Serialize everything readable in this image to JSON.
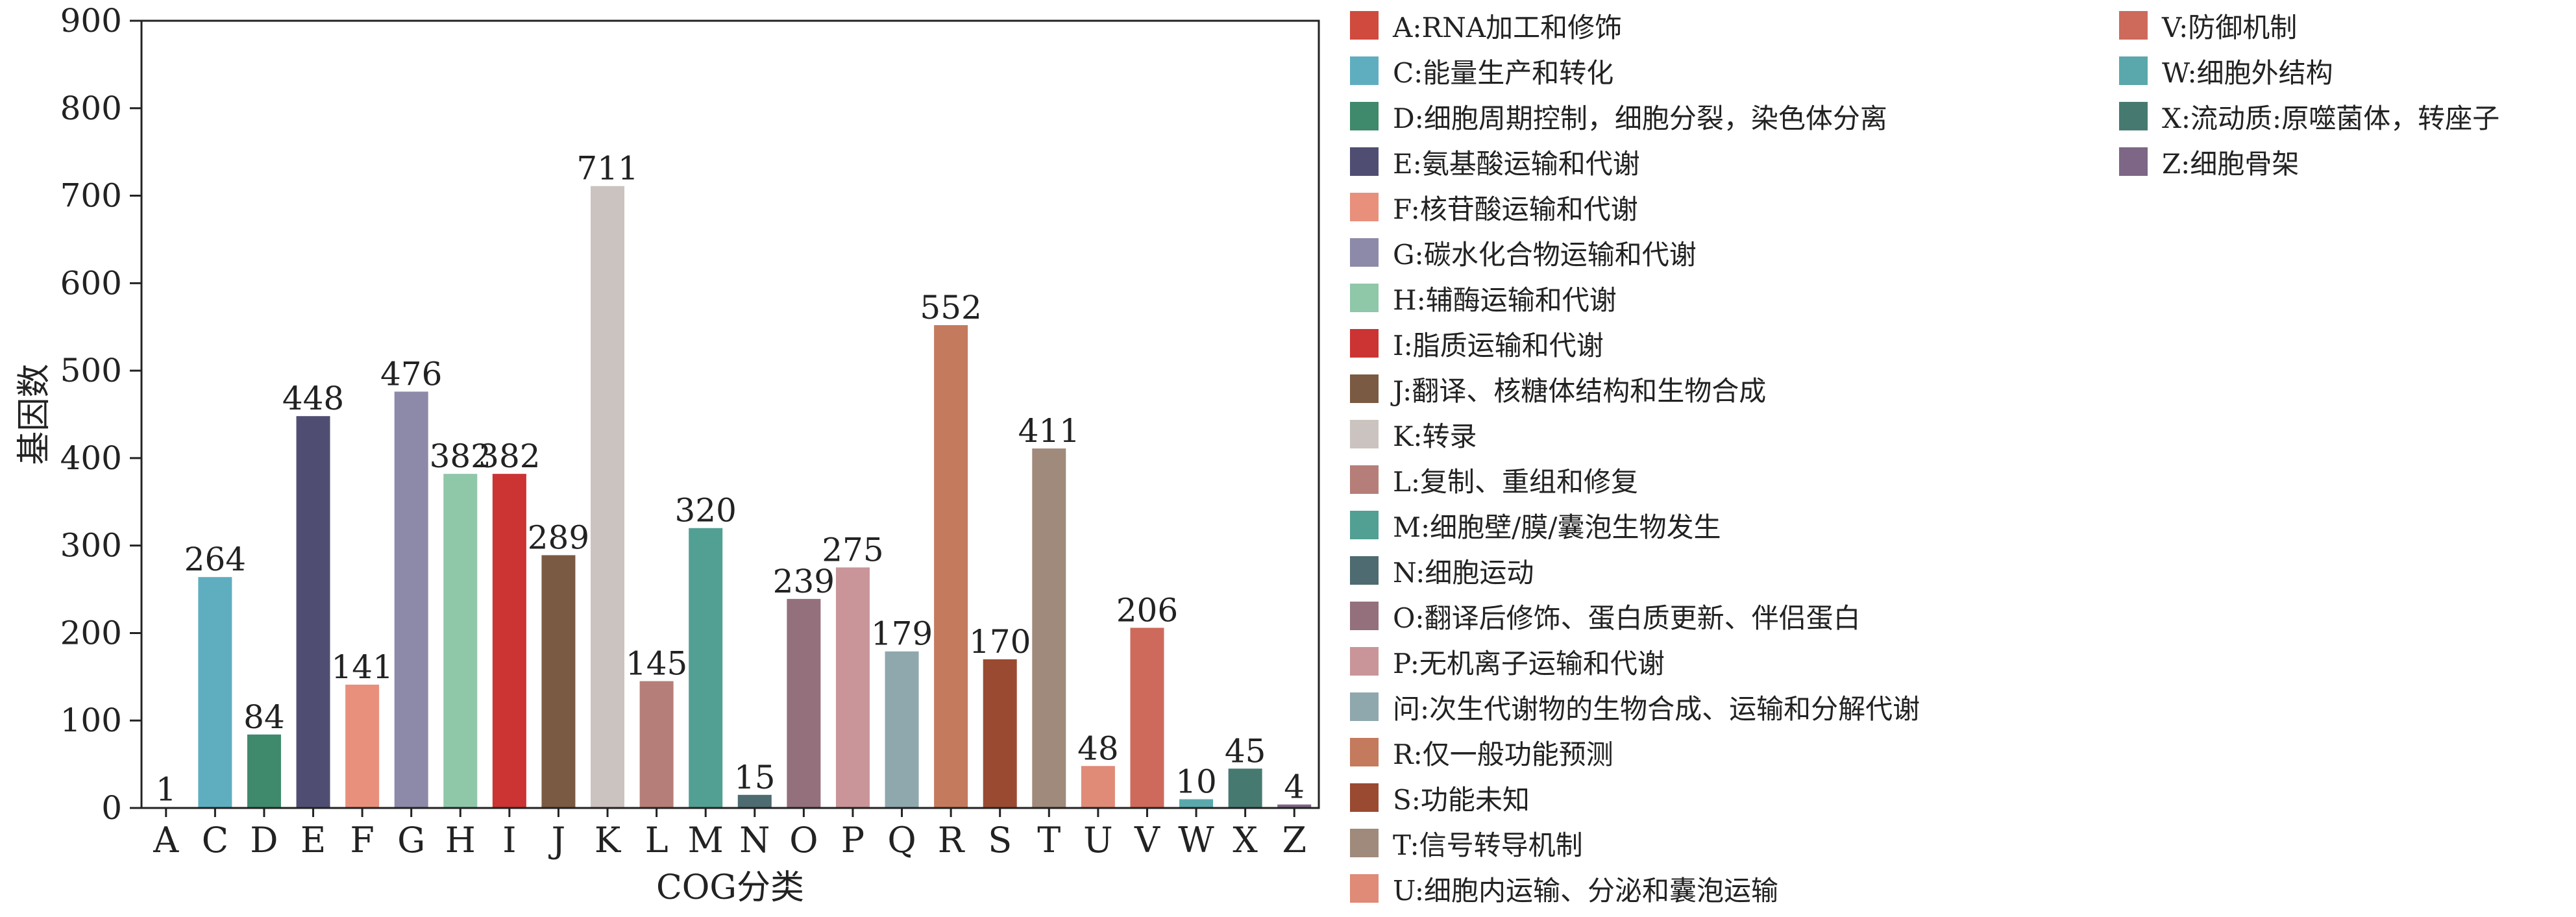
{
  "chart_data": {
    "type": "bar",
    "title": "",
    "xlabel": "COG分类",
    "ylabel": "基因数",
    "ylim": [
      0,
      900
    ],
    "yticks": [
      0,
      100,
      200,
      300,
      400,
      500,
      600,
      700,
      800,
      900
    ],
    "grid": false,
    "legend_placement": "right",
    "categories": [
      "A",
      "C",
      "D",
      "E",
      "F",
      "G",
      "H",
      "I",
      "J",
      "K",
      "L",
      "M",
      "N",
      "O",
      "P",
      "Q",
      "R",
      "S",
      "T",
      "U",
      "V",
      "W",
      "X",
      "Z"
    ],
    "values": [
      1,
      264,
      84,
      448,
      141,
      476,
      382,
      382,
      289,
      711,
      145,
      320,
      15,
      239,
      275,
      179,
      552,
      170,
      411,
      48,
      206,
      10,
      45,
      4
    ],
    "colors": [
      "#d04a3e",
      "#5faec0",
      "#3f8a6c",
      "#4f4e72",
      "#e8907c",
      "#8c8aa8",
      "#8fc7a9",
      "#cc3333",
      "#7a5a42",
      "#cbc3bf",
      "#b67e78",
      "#52a093",
      "#4d6b70",
      "#93707c",
      "#c99599",
      "#8fa8ad",
      "#c47a5c",
      "#9b4a32",
      "#a08a7c",
      "#e08a78",
      "#cd6a5c",
      "#5aa8ac",
      "#467a70",
      "#7d6686"
    ],
    "legend": [
      "A:RNA加工和修饰",
      "C:能量生产和转化",
      "D:细胞周期控制，细胞分裂，染色体分离",
      "E:氨基酸运输和代谢",
      "F:核苷酸运输和代谢",
      "G:碳水化合物运输和代谢",
      "H:辅酶运输和代谢",
      "I:脂质运输和代谢",
      "J:翻译、核糖体结构和生物合成",
      "K:转录",
      "L:复制、重组和修复",
      "M:细胞壁/膜/囊泡生物发生",
      "N:细胞运动",
      "O:翻译后修饰、蛋白质更新、伴侣蛋白",
      "P:无机离子运输和代谢",
      "问:次生代谢物的生物合成、运输和分解代谢",
      "R:仅一般功能预测",
      "S:功能未知",
      "T:信号转导机制",
      "U:细胞内运输、分泌和囊泡运输",
      "V:防御机制",
      "W:细胞外结构",
      "X:流动质:原噬菌体，转座子",
      "Z:细胞骨架"
    ]
  }
}
